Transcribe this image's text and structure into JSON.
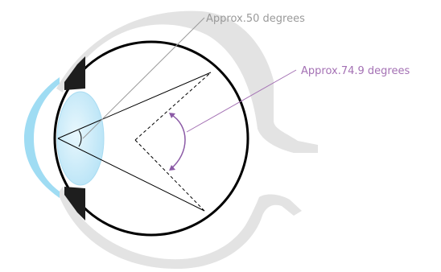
{
  "labels": {
    "angle_a": "Approx.50 degrees",
    "angle_b": "Approx.74.9 degrees"
  },
  "colors": {
    "label_a": "#9a9a9a",
    "label_b": "#a471b4",
    "arc_b": "#8b5aa6",
    "sclera": "#e3e3e3",
    "cornea": "#9fdcf3",
    "lens": "#c9ebf8",
    "iris": "#1e1e1e",
    "outline": "#000000"
  }
}
